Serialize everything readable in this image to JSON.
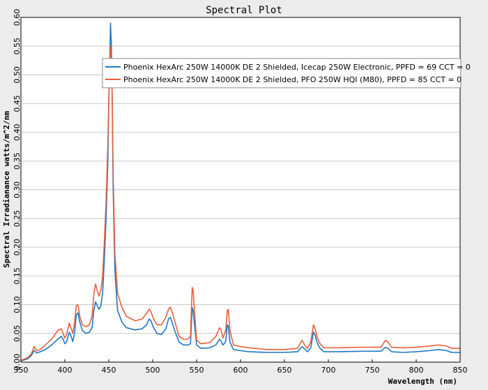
{
  "chart_data": {
    "type": "line",
    "title": "Spectral Plot",
    "xlabel": "Wavelength (nm)",
    "ylabel": "Spectral Irradianance watts/m^2/nm",
    "xlim": [
      350,
      850
    ],
    "ylim": [
      0,
      0.6
    ],
    "xticks": [
      350,
      400,
      450,
      500,
      550,
      600,
      650,
      700,
      750,
      800,
      850
    ],
    "yticks": [
      0,
      0.05,
      0.1,
      0.15,
      0.2,
      0.25,
      0.3,
      0.35,
      0.4,
      0.45,
      0.5,
      0.55,
      0.6
    ],
    "xtick_labels": [
      "350",
      "400",
      "450",
      "500",
      "550",
      "600",
      "650",
      "700",
      "750",
      "800",
      "850"
    ],
    "ytick_labels": [
      "0.00",
      "0.05",
      "0.10",
      "0.15",
      "0.20",
      "0.25",
      "0.30",
      "0.35",
      "0.40",
      "0.45",
      "0.50",
      "0.55",
      "0.60"
    ],
    "grid": true,
    "legend_position": "top-right",
    "series": [
      {
        "name": "Phoenix HexArc 250W 14000K DE 2 Shielded, Icecap 250W Electronic, PPFD = 69  CCT = 0",
        "color": "#1f77c4",
        "points": [
          [
            350,
            0.002
          ],
          [
            358,
            0.006
          ],
          [
            362,
            0.012
          ],
          [
            365,
            0.02
          ],
          [
            368,
            0.016
          ],
          [
            372,
            0.018
          ],
          [
            378,
            0.022
          ],
          [
            385,
            0.03
          ],
          [
            392,
            0.04
          ],
          [
            396,
            0.045
          ],
          [
            398,
            0.04
          ],
          [
            400,
            0.032
          ],
          [
            402,
            0.035
          ],
          [
            405,
            0.052
          ],
          [
            407,
            0.046
          ],
          [
            409,
            0.036
          ],
          [
            411,
            0.05
          ],
          [
            413,
            0.082
          ],
          [
            415,
            0.086
          ],
          [
            417,
            0.07
          ],
          [
            420,
            0.055
          ],
          [
            424,
            0.05
          ],
          [
            428,
            0.052
          ],
          [
            431,
            0.06
          ],
          [
            433,
            0.09
          ],
          [
            435,
            0.105
          ],
          [
            437,
            0.098
          ],
          [
            439,
            0.092
          ],
          [
            441,
            0.098
          ],
          [
            443,
            0.12
          ],
          [
            445,
            0.18
          ],
          [
            447,
            0.25
          ],
          [
            449,
            0.35
          ],
          [
            450,
            0.45
          ],
          [
            451,
            0.52
          ],
          [
            452,
            0.59
          ],
          [
            453,
            0.55
          ],
          [
            454,
            0.45
          ],
          [
            455,
            0.3
          ],
          [
            457,
            0.16
          ],
          [
            460,
            0.09
          ],
          [
            465,
            0.07
          ],
          [
            470,
            0.06
          ],
          [
            480,
            0.056
          ],
          [
            488,
            0.058
          ],
          [
            493,
            0.065
          ],
          [
            496,
            0.075
          ],
          [
            498,
            0.072
          ],
          [
            501,
            0.06
          ],
          [
            505,
            0.05
          ],
          [
            510,
            0.048
          ],
          [
            515,
            0.058
          ],
          [
            518,
            0.075
          ],
          [
            520,
            0.078
          ],
          [
            522,
            0.07
          ],
          [
            525,
            0.055
          ],
          [
            530,
            0.035
          ],
          [
            535,
            0.03
          ],
          [
            540,
            0.03
          ],
          [
            543,
            0.032
          ],
          [
            545,
            0.095
          ],
          [
            546,
            0.09
          ],
          [
            548,
            0.06
          ],
          [
            550,
            0.03
          ],
          [
            555,
            0.024
          ],
          [
            565,
            0.025
          ],
          [
            572,
            0.03
          ],
          [
            576,
            0.04
          ],
          [
            578,
            0.036
          ],
          [
            580,
            0.03
          ],
          [
            583,
            0.035
          ],
          [
            585,
            0.065
          ],
          [
            586,
            0.063
          ],
          [
            588,
            0.035
          ],
          [
            592,
            0.022
          ],
          [
            600,
            0.02
          ],
          [
            610,
            0.018
          ],
          [
            630,
            0.017
          ],
          [
            650,
            0.017
          ],
          [
            665,
            0.018
          ],
          [
            670,
            0.027
          ],
          [
            673,
            0.023
          ],
          [
            676,
            0.018
          ],
          [
            680,
            0.025
          ],
          [
            683,
            0.052
          ],
          [
            685,
            0.047
          ],
          [
            687,
            0.035
          ],
          [
            690,
            0.025
          ],
          [
            695,
            0.018
          ],
          [
            710,
            0.018
          ],
          [
            740,
            0.019
          ],
          [
            760,
            0.019
          ],
          [
            765,
            0.026
          ],
          [
            768,
            0.024
          ],
          [
            772,
            0.018
          ],
          [
            785,
            0.017
          ],
          [
            800,
            0.018
          ],
          [
            815,
            0.02
          ],
          [
            825,
            0.022
          ],
          [
            835,
            0.02
          ],
          [
            840,
            0.017
          ],
          [
            850,
            0.017
          ]
        ]
      },
      {
        "name": "Phoenix HexArc 250W 14000K DE 2 Shielded, PFO 250W HQI (M80), PPFD = 85  CCT = 0",
        "color": "#e8603c",
        "points": [
          [
            350,
            0.003
          ],
          [
            358,
            0.008
          ],
          [
            362,
            0.015
          ],
          [
            365,
            0.027
          ],
          [
            368,
            0.02
          ],
          [
            372,
            0.022
          ],
          [
            378,
            0.03
          ],
          [
            385,
            0.04
          ],
          [
            392,
            0.055
          ],
          [
            396,
            0.058
          ],
          [
            398,
            0.05
          ],
          [
            400,
            0.042
          ],
          [
            402,
            0.048
          ],
          [
            405,
            0.068
          ],
          [
            407,
            0.06
          ],
          [
            409,
            0.05
          ],
          [
            411,
            0.068
          ],
          [
            413,
            0.098
          ],
          [
            415,
            0.1
          ],
          [
            417,
            0.08
          ],
          [
            420,
            0.065
          ],
          [
            424,
            0.062
          ],
          [
            428,
            0.065
          ],
          [
            431,
            0.08
          ],
          [
            433,
            0.118
          ],
          [
            435,
            0.136
          ],
          [
            437,
            0.124
          ],
          [
            439,
            0.115
          ],
          [
            441,
            0.125
          ],
          [
            443,
            0.15
          ],
          [
            445,
            0.21
          ],
          [
            447,
            0.28
          ],
          [
            449,
            0.38
          ],
          [
            450,
            0.46
          ],
          [
            451,
            0.5
          ],
          [
            452,
            0.55
          ],
          [
            453,
            0.53
          ],
          [
            454,
            0.46
          ],
          [
            455,
            0.33
          ],
          [
            457,
            0.19
          ],
          [
            460,
            0.12
          ],
          [
            465,
            0.095
          ],
          [
            470,
            0.08
          ],
          [
            480,
            0.072
          ],
          [
            488,
            0.075
          ],
          [
            493,
            0.085
          ],
          [
            496,
            0.092
          ],
          [
            498,
            0.088
          ],
          [
            501,
            0.075
          ],
          [
            505,
            0.065
          ],
          [
            510,
            0.065
          ],
          [
            515,
            0.078
          ],
          [
            518,
            0.092
          ],
          [
            520,
            0.096
          ],
          [
            522,
            0.088
          ],
          [
            525,
            0.072
          ],
          [
            530,
            0.045
          ],
          [
            535,
            0.04
          ],
          [
            540,
            0.04
          ],
          [
            543,
            0.045
          ],
          [
            545,
            0.13
          ],
          [
            546,
            0.125
          ],
          [
            548,
            0.08
          ],
          [
            550,
            0.038
          ],
          [
            555,
            0.032
          ],
          [
            565,
            0.034
          ],
          [
            572,
            0.045
          ],
          [
            576,
            0.06
          ],
          [
            578,
            0.055
          ],
          [
            580,
            0.042
          ],
          [
            583,
            0.055
          ],
          [
            585,
            0.09
          ],
          [
            586,
            0.092
          ],
          [
            588,
            0.055
          ],
          [
            592,
            0.03
          ],
          [
            600,
            0.027
          ],
          [
            610,
            0.025
          ],
          [
            630,
            0.022
          ],
          [
            650,
            0.022
          ],
          [
            665,
            0.024
          ],
          [
            670,
            0.038
          ],
          [
            673,
            0.03
          ],
          [
            676,
            0.024
          ],
          [
            680,
            0.035
          ],
          [
            683,
            0.065
          ],
          [
            685,
            0.058
          ],
          [
            687,
            0.045
          ],
          [
            690,
            0.033
          ],
          [
            695,
            0.025
          ],
          [
            710,
            0.025
          ],
          [
            740,
            0.026
          ],
          [
            760,
            0.026
          ],
          [
            765,
            0.038
          ],
          [
            768,
            0.035
          ],
          [
            772,
            0.026
          ],
          [
            785,
            0.025
          ],
          [
            800,
            0.026
          ],
          [
            815,
            0.028
          ],
          [
            825,
            0.03
          ],
          [
            835,
            0.028
          ],
          [
            840,
            0.024
          ],
          [
            850,
            0.024
          ]
        ]
      }
    ]
  }
}
